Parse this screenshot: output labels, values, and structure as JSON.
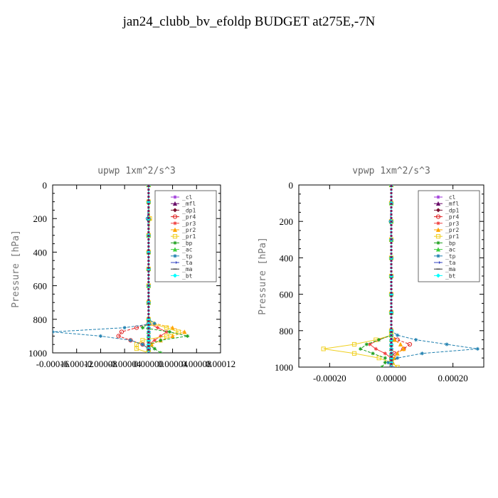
{
  "title": "jan24_clubb_bv_efoldp  BUDGET at275E,-7N",
  "chart_data": [
    {
      "type": "line",
      "title": "upwp   1xm^2/s^3",
      "ylabel": "Pressure [hPa]",
      "xlim": [
        -0.00016,
        0.00012
      ],
      "ylim": [
        1000,
        0
      ],
      "x_ticks": [
        "-0.00016",
        "-0.00012",
        "-0.00008",
        "-0.00004",
        "0.00000",
        "0.00004",
        "0.00008",
        "0.00012"
      ],
      "y_ticks": [
        "0",
        "200",
        "400",
        "600",
        "800",
        "1000"
      ],
      "legend_position": "top-right",
      "y": [
        0,
        100,
        200,
        300,
        400,
        500,
        600,
        700,
        800,
        825,
        850,
        875,
        900,
        925,
        950,
        975,
        1000
      ],
      "series": [
        {
          "name": "_cl",
          "color": "#9b30d9",
          "marker": "star",
          "x": [
            0,
            0,
            0,
            0,
            0,
            0,
            0,
            0,
            0,
            0,
            0,
            0,
            0,
            0,
            0,
            0,
            0
          ]
        },
        {
          "name": "_mfl",
          "color": "#6a0a6a",
          "marker": "triangle",
          "x": [
            0,
            0,
            0,
            0,
            0,
            0,
            0,
            0,
            0,
            0,
            0,
            0,
            0,
            0,
            0,
            0,
            0
          ]
        },
        {
          "name": "_dp1",
          "color": "#7a1030",
          "marker": "diamond",
          "x": [
            0,
            0,
            0,
            0,
            0,
            0,
            0,
            0,
            0,
            0,
            0,
            0,
            0,
            0,
            0,
            0,
            0
          ]
        },
        {
          "name": "_pr4",
          "color": "#e02020",
          "marker": "circle",
          "x": [
            0,
            0,
            0,
            0,
            0,
            0,
            0,
            0,
            0,
            0,
            -2e-05,
            -4.5e-05,
            -5e-05,
            -3e-05,
            -1e-05,
            0,
            0
          ]
        },
        {
          "name": "_pr3",
          "color": "#f04040",
          "marker": "star",
          "x": [
            0,
            0,
            0,
            0,
            0,
            0,
            0,
            0,
            0,
            0,
            1.5e-05,
            3e-05,
            2e-05,
            1e-05,
            0,
            0,
            0
          ]
        },
        {
          "name": "_pr2",
          "color": "#ffa500",
          "marker": "triangle",
          "x": [
            0,
            0,
            2e-06,
            0,
            0,
            0,
            0,
            0,
            0,
            1e-05,
            4e-05,
            6e-05,
            4e-05,
            2e-05,
            5e-06,
            0,
            0
          ]
        },
        {
          "name": "_pr1",
          "color": "#f0d020",
          "marker": "square",
          "x": [
            0,
            0,
            2e-06,
            0,
            0,
            0,
            0,
            0,
            0,
            5e-06,
            3e-05,
            5e-05,
            3e-05,
            -1e-05,
            -2e-05,
            -2e-05,
            0
          ]
        },
        {
          "name": "_bp",
          "color": "#20a020",
          "marker": "star",
          "x": [
            0,
            0,
            0,
            0,
            0,
            0,
            0,
            0,
            0,
            0,
            -1e-05,
            3.5e-05,
            6.5e-05,
            2e-05,
            0,
            1e-05,
            2e-05
          ]
        },
        {
          "name": "_ac",
          "color": "#40d040",
          "marker": "triangle",
          "x": [
            0,
            0,
            0,
            0,
            0,
            0,
            0,
            0,
            0,
            0,
            0,
            0,
            0,
            0,
            0,
            0,
            0
          ]
        },
        {
          "name": "_tp",
          "color": "#2080b0",
          "marker": "star",
          "x": [
            0,
            0,
            -2e-06,
            0,
            0,
            0,
            0,
            0,
            0,
            1e-05,
            -4e-05,
            -0.00016,
            -8e-05,
            -3e-05,
            -1e-05,
            0,
            0
          ]
        },
        {
          "name": "_ta",
          "color": "#3040c0",
          "marker": "arrow",
          "x": [
            0,
            0,
            0,
            0,
            0,
            0,
            0,
            0,
            0,
            0,
            0,
            0,
            0,
            0,
            0,
            0,
            0
          ]
        },
        {
          "name": "_ma",
          "color": "#333333",
          "marker": "dash",
          "x": [
            0,
            0,
            0,
            0,
            0,
            0,
            0,
            0,
            0,
            0,
            0,
            0,
            0,
            0,
            0,
            0,
            0
          ]
        },
        {
          "name": "_bt",
          "color": "#00ffff",
          "marker": "diamond",
          "x": [
            0,
            0,
            0,
            0,
            0,
            0,
            0,
            0,
            0,
            0,
            0,
            0,
            0,
            0,
            0,
            0,
            0
          ]
        }
      ]
    },
    {
      "type": "line",
      "title": "vpwp   1xm^2/s^3",
      "ylabel": "Pressure [hPa]",
      "xlim": [
        -0.0003,
        0.0003
      ],
      "ylim": [
        1000,
        0
      ],
      "x_ticks": [
        "-0.00020",
        "0.00000",
        "0.00020"
      ],
      "y_ticks": [
        "0",
        "200",
        "400",
        "600",
        "800",
        "1000"
      ],
      "legend_position": "top-right",
      "y": [
        0,
        100,
        200,
        300,
        400,
        500,
        600,
        700,
        800,
        825,
        850,
        875,
        900,
        925,
        950,
        975,
        1000
      ],
      "series": [
        {
          "name": "_cl",
          "color": "#9b30d9",
          "marker": "star",
          "x": [
            0,
            0,
            0,
            0,
            0,
            0,
            0,
            0,
            0,
            0,
            0,
            0,
            0,
            0,
            0,
            0,
            0
          ]
        },
        {
          "name": "_mfl",
          "color": "#6a0a6a",
          "marker": "triangle",
          "x": [
            0,
            0,
            0,
            0,
            0,
            0,
            0,
            0,
            0,
            0,
            0,
            0,
            0,
            0,
            0,
            0,
            0
          ]
        },
        {
          "name": "_dp1",
          "color": "#7a1030",
          "marker": "diamond",
          "x": [
            0,
            0,
            0,
            0,
            0,
            0,
            0,
            0,
            0,
            0,
            0,
            0,
            0,
            0,
            0,
            0,
            0
          ]
        },
        {
          "name": "_pr4",
          "color": "#e02020",
          "marker": "circle",
          "x": [
            0,
            0,
            0,
            0,
            0,
            0,
            0,
            0,
            0,
            0,
            2e-05,
            6e-05,
            4e-05,
            1e-05,
            0,
            0,
            0
          ]
        },
        {
          "name": "_pr3",
          "color": "#f04040",
          "marker": "star",
          "x": [
            0,
            0,
            0,
            0,
            0,
            0,
            0,
            0,
            0,
            0,
            -4e-05,
            -7e-05,
            -5e-05,
            -2e-05,
            0,
            0,
            0
          ]
        },
        {
          "name": "_pr2",
          "color": "#ffa500",
          "marker": "triangle",
          "x": [
            0,
            0,
            0,
            0,
            0,
            0,
            0,
            0,
            0,
            0,
            1e-05,
            3e-05,
            4e-05,
            2e-05,
            1e-05,
            5e-06,
            0
          ]
        },
        {
          "name": "_pr1",
          "color": "#f0d020",
          "marker": "square",
          "x": [
            0,
            0,
            0,
            0,
            0,
            0,
            0,
            0,
            0,
            0,
            -5e-05,
            -0.00012,
            -0.00022,
            -0.00012,
            -4e-05,
            0,
            2e-05
          ]
        },
        {
          "name": "_bp",
          "color": "#20a020",
          "marker": "star",
          "x": [
            0,
            0,
            0,
            0,
            0,
            0,
            0,
            0,
            0,
            0,
            -4e-05,
            -8e-05,
            -0.0001,
            -6e-05,
            -2e-05,
            -2e-05,
            -3e-05
          ]
        },
        {
          "name": "_ac",
          "color": "#40d040",
          "marker": "triangle",
          "x": [
            0,
            0,
            0,
            0,
            0,
            0,
            0,
            0,
            0,
            0,
            0,
            0,
            0,
            0,
            0,
            0,
            0
          ]
        },
        {
          "name": "_tp",
          "color": "#2080b0",
          "marker": "star",
          "x": [
            0,
            0,
            -3e-06,
            0,
            0,
            0,
            0,
            0,
            0,
            2e-05,
            8e-05,
            0.00018,
            0.00028,
            0.0001,
            2e-05,
            -1e-05,
            0
          ]
        },
        {
          "name": "_ta",
          "color": "#3040c0",
          "marker": "arrow",
          "x": [
            0,
            0,
            0,
            0,
            0,
            0,
            0,
            0,
            0,
            0,
            0,
            0,
            0,
            0,
            0,
            0,
            0
          ]
        },
        {
          "name": "_ma",
          "color": "#333333",
          "marker": "dash",
          "x": [
            0,
            0,
            0,
            0,
            0,
            0,
            0,
            0,
            0,
            0,
            0,
            0,
            0,
            0,
            0,
            0,
            0
          ]
        },
        {
          "name": "_bt",
          "color": "#00ffff",
          "marker": "diamond",
          "x": [
            0,
            0,
            0,
            0,
            0,
            0,
            0,
            0,
            0,
            0,
            0,
            0,
            0,
            0,
            0,
            0,
            0
          ]
        }
      ]
    }
  ]
}
